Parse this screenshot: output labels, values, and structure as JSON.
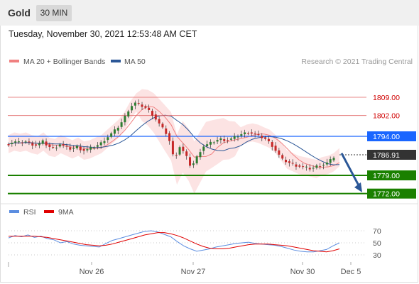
{
  "header": {
    "instrument": "Gold",
    "timeframe": "30 MIN"
  },
  "timestamp": "Tuesday, November 30, 2021 12:53:48 AM CET",
  "colors": {
    "bollinger": "#f08080",
    "ma50": "#2b5797",
    "resistance_line": "#e06060",
    "pivot": "#1a66ff",
    "support": "#1a8000",
    "current": "#333333",
    "rsi": "#5b8de0",
    "rsi_ma": "#e00000",
    "arrow": "#2b5797"
  },
  "chart_data": [
    {
      "type": "candlestick",
      "legend": [
        {
          "name": "MA 20 + Bollinger Bands",
          "color": "#f08080"
        },
        {
          "name": "MA 50",
          "color": "#2b5797"
        }
      ],
      "watermark": "Research © 2021 Trading Central",
      "ylim": [
        1766,
        1816
      ],
      "levels": [
        {
          "value": 1809.0,
          "label": "1809.00",
          "kind": "resistance"
        },
        {
          "value": 1802.0,
          "label": "1802.00",
          "kind": "resistance"
        },
        {
          "value": 1794.0,
          "label": "1794.00",
          "kind": "pivot"
        },
        {
          "value": 1786.91,
          "label": "1786.91",
          "kind": "current"
        },
        {
          "value": 1779.0,
          "label": "1779.00",
          "kind": "support"
        },
        {
          "value": 1772.0,
          "label": "1772.00",
          "kind": "support"
        }
      ],
      "forecast_arrow": {
        "from": 1787.5,
        "to": 1772.5
      },
      "x_ticks": [
        "Nov 26",
        "Nov 27",
        "Nov 30",
        "Dec 5"
      ],
      "close_path": [
        1791,
        1792,
        1791.5,
        1792,
        1791,
        1790.5,
        1792,
        1790,
        1789.5,
        1791,
        1790,
        1789,
        1790,
        1788.5,
        1789,
        1790,
        1791,
        1793,
        1795,
        1797,
        1800,
        1804,
        1807,
        1806,
        1805,
        1803,
        1800,
        1797,
        1794,
        1785,
        1790,
        1787,
        1782,
        1786,
        1790,
        1791,
        1792,
        1793,
        1792.5,
        1793,
        1794,
        1795,
        1795.5,
        1795,
        1794,
        1793,
        1791,
        1788,
        1785,
        1784,
        1783,
        1782.5,
        1782,
        1781.5,
        1782.5,
        1783,
        1784,
        1786
      ]
    },
    {
      "type": "line",
      "legend": [
        {
          "name": "RSI",
          "color": "#5b8de0"
        },
        {
          "name": "9MA",
          "color": "#e00000"
        }
      ],
      "ylim": [
        20,
        80
      ],
      "y_ticks": [
        "70",
        "50",
        "30"
      ],
      "rsi": [
        58,
        62,
        60,
        63,
        59,
        61,
        57,
        55,
        50,
        52,
        48,
        46,
        45,
        44,
        43,
        49,
        54,
        57,
        60,
        63,
        66,
        69,
        70,
        68,
        64,
        60,
        52,
        45,
        40,
        36,
        38,
        40,
        43,
        45,
        47,
        49,
        50,
        51,
        49,
        48,
        47,
        46,
        44,
        41,
        38,
        36,
        35,
        35,
        37,
        39,
        45,
        50
      ],
      "ma9": [
        61,
        61,
        61,
        61,
        61,
        60,
        59,
        57,
        55,
        53,
        51,
        49,
        47,
        46,
        45,
        46,
        48,
        51,
        54,
        57,
        60,
        63,
        65,
        67,
        67,
        65,
        62,
        58,
        53,
        48,
        44,
        41,
        40,
        40,
        41,
        43,
        45,
        47,
        48,
        48,
        48,
        47,
        46,
        45,
        43,
        41,
        39,
        37,
        36,
        35,
        37,
        40
      ]
    }
  ]
}
